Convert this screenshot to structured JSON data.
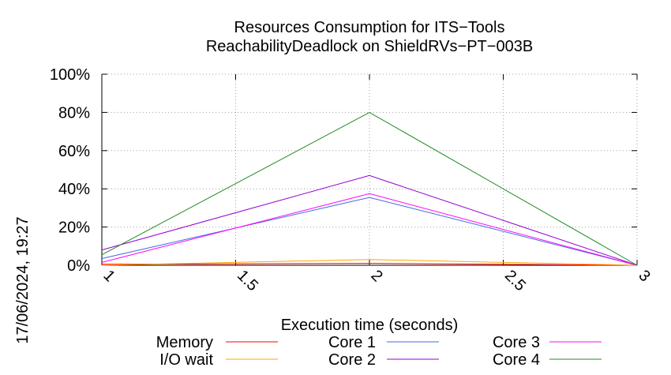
{
  "chart_data": {
    "type": "line",
    "title": "Resources Consumption for ITS−Tools",
    "subtitle": "ReachabilityDeadlock on ShieldRVs−PT−003B",
    "xlabel": "Execution time (seconds)",
    "ylabel": "",
    "xlim": [
      1,
      3
    ],
    "ylim": [
      0,
      100
    ],
    "x_ticks": [
      1,
      1.5,
      2,
      2.5,
      3
    ],
    "x_tick_labels": [
      "1",
      "1.5",
      "2",
      "2.5",
      "3"
    ],
    "y_ticks": [
      0,
      20,
      40,
      60,
      80,
      100
    ],
    "y_tick_labels": [
      "0%",
      "20%",
      "40%",
      "60%",
      "80%",
      "100%"
    ],
    "grid": true,
    "legend_position": "bottom",
    "timestamp": "17/06/2024, 19:27",
    "x": [
      1,
      2,
      3
    ],
    "series": [
      {
        "name": "Memory",
        "color": "#ff0000",
        "values": [
          0.5,
          1.0,
          0.0
        ]
      },
      {
        "name": "I/O wait",
        "color": "#ffa500",
        "values": [
          0.0,
          3.0,
          0.0
        ]
      },
      {
        "name": "Core 1",
        "color": "#4169e1",
        "values": [
          3.5,
          35.5,
          0.0
        ]
      },
      {
        "name": "Core 2",
        "color": "#9400d3",
        "values": [
          8.0,
          47.0,
          0.0
        ]
      },
      {
        "name": "Core 3",
        "color": "#ff00ff",
        "values": [
          1.5,
          37.5,
          0.0
        ]
      },
      {
        "name": "Core 4",
        "color": "#228b22",
        "values": [
          5.5,
          80.0,
          0.0
        ]
      }
    ]
  }
}
